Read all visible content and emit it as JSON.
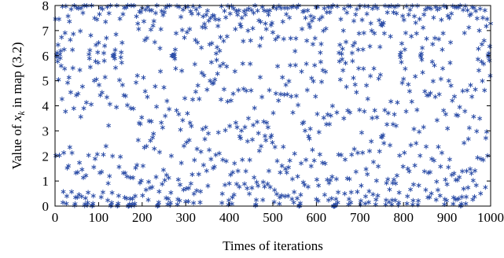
{
  "chart_data": {
    "type": "scatter",
    "title": "",
    "xlabel": "Times of iterations",
    "ylabel_prefix": "Value of ",
    "ylabel_var": "x",
    "ylabel_sub": "k",
    "ylabel_suffix": " in map (3.2)",
    "xlim": [
      0,
      1000
    ],
    "ylim": [
      0,
      8
    ],
    "xticks": [
      0,
      100,
      200,
      300,
      400,
      500,
      600,
      700,
      800,
      900,
      1000
    ],
    "yticks": [
      0,
      1,
      2,
      3,
      4,
      5,
      6,
      7,
      8
    ],
    "grid": false,
    "marker": "asterisk",
    "marker_color": "#2e4fa8",
    "series": [
      {
        "points_count": 1000,
        "generator": {
          "kind": "chaotic-map",
          "r": 4.0,
          "x0": 0.3701,
          "scale": 8
        }
      }
    ]
  }
}
